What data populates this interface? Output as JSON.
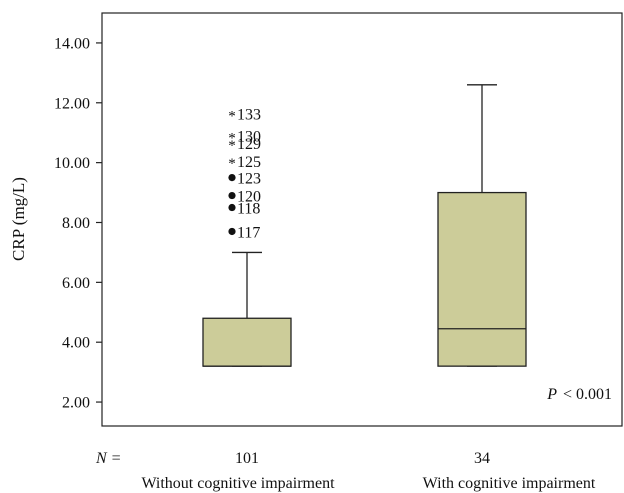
{
  "chart_data": {
    "type": "boxplot",
    "title": "",
    "ylabel": "CRP (mg/L)",
    "xlabel": "",
    "ylim": [
      1.2,
      15.0
    ],
    "yticks": [
      "2.00",
      "4.00",
      "6.00",
      "8.00",
      "10.00",
      "12.00",
      "14.00"
    ],
    "grid": false,
    "box_color": "#cccc99",
    "n_label": "N =",
    "groups": [
      {
        "name": "Without cognitive impairment",
        "n": "101",
        "whisker_low": 3.2,
        "q1": 3.2,
        "median": 3.2,
        "q3": 4.8,
        "whisker_high": 7.0,
        "outliers": [
          {
            "id": "133",
            "value": 11.65,
            "marker": "star"
          },
          {
            "id": "130",
            "value": 10.9,
            "marker": "star"
          },
          {
            "id": "129",
            "value": 10.65,
            "marker": "star"
          },
          {
            "id": "125",
            "value": 10.05,
            "marker": "star"
          },
          {
            "id": "123",
            "value": 9.5,
            "marker": "dot"
          },
          {
            "id": "120",
            "value": 8.9,
            "marker": "dot"
          },
          {
            "id": "118",
            "value": 8.5,
            "marker": "dot"
          },
          {
            "id": "117",
            "value": 7.7,
            "marker": "dot"
          }
        ]
      },
      {
        "name": "With cognitive impairment",
        "n": "34",
        "whisker_low": 3.2,
        "q1": 3.2,
        "median": 4.45,
        "q3": 9.0,
        "whisker_high": 12.6,
        "outliers": []
      }
    ],
    "annotation": {
      "p_symbol": "P",
      "p_rest": "< 0.001"
    }
  }
}
